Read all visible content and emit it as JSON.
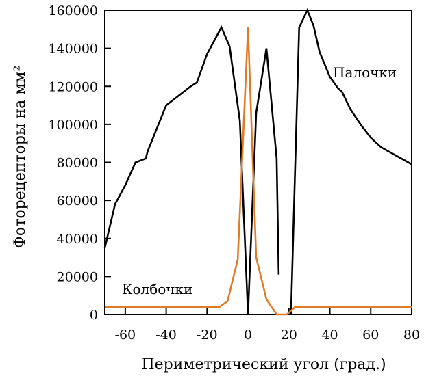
{
  "chart_data": {
    "type": "line",
    "xlabel": "Периметрический угол (град.)",
    "ylabel": "Фоторецепторы на мм²",
    "xlim": [
      -70,
      80
    ],
    "ylim": [
      0,
      160000
    ],
    "x_ticks": [
      -60,
      -40,
      -20,
      0,
      20,
      40,
      60,
      80
    ],
    "y_ticks": [
      0,
      20000,
      40000,
      60000,
      80000,
      100000,
      120000,
      140000,
      160000
    ],
    "grid": false,
    "legend": "none",
    "series": [
      {
        "name": "Палочки",
        "color": "#000000",
        "segments": [
          [
            [
              -70,
              35000
            ],
            [
              -65,
              58000
            ],
            [
              -60,
              68000
            ],
            [
              -55,
              80000
            ],
            [
              -50,
              82000
            ],
            [
              -49,
              86000
            ],
            [
              -40,
              110000
            ],
            [
              -28,
              120000
            ],
            [
              -25,
              122000
            ],
            [
              -20,
              137000
            ],
            [
              -15,
              147000
            ],
            [
              -13,
              151000
            ],
            [
              -9,
              141000
            ],
            [
              -4,
              102000
            ],
            [
              0,
              0
            ],
            [
              4,
              106000
            ],
            [
              9,
              140000
            ],
            [
              14,
              82000
            ],
            [
              15,
              21000
            ]
          ],
          [
            [
              21,
              0
            ],
            [
              25,
              151000
            ],
            [
              29,
              160000
            ],
            [
              32,
              152000
            ],
            [
              35,
              138000
            ],
            [
              40,
              125000
            ],
            [
              44,
              119000
            ],
            [
              46,
              117000
            ],
            [
              50,
              108000
            ],
            [
              55,
              100000
            ],
            [
              60,
              93000
            ],
            [
              65,
              88000
            ],
            [
              70,
              85000
            ],
            [
              75,
              82000
            ],
            [
              80,
              79000
            ]
          ]
        ]
      },
      {
        "name": "Колбочки",
        "color": "#E07B25",
        "segments": [
          [
            [
              -70,
              4000
            ],
            [
              -14,
              4000
            ],
            [
              -10,
              7000
            ],
            [
              -5,
              29000
            ],
            [
              0,
              151000
            ],
            [
              4,
              30000
            ],
            [
              9,
              8000
            ],
            [
              14,
              0
            ],
            [
              19,
              0
            ],
            [
              23,
              4000
            ],
            [
              80,
              4000
            ]
          ]
        ]
      }
    ],
    "labels": {
      "rods": "Палочки",
      "cones": "Колбочки"
    }
  }
}
